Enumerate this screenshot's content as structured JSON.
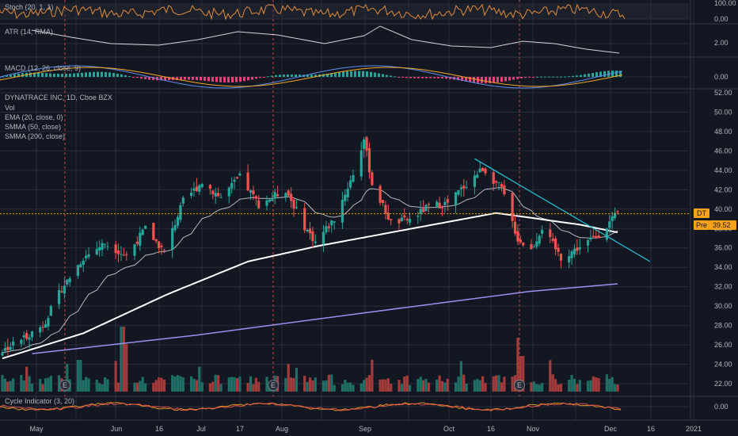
{
  "panes": {
    "stoch": {
      "label": "Stoch (20, 1, 1)",
      "ticks": [
        "100.00",
        "0.00"
      ]
    },
    "atr": {
      "label": "ATR (14, RMA)",
      "ticks": [
        "2.00"
      ]
    },
    "macd": {
      "label": "MACD (12, 26, close, 9)",
      "ticks": [
        "0.00"
      ]
    },
    "main": {
      "title": "DYNATRACE INC, 1D, Cboe BZX",
      "legend": [
        "Vol",
        "EMA (20, close, 0)",
        "SMMA (50, close)",
        "SMMA (200, close)"
      ],
      "badges": {
        "symbol": "DT",
        "pre": "Pre",
        "pre_value": "39.52"
      }
    },
    "cycle": {
      "label": "Cycle Indicator (3, 20)",
      "ticks": [
        "0.00"
      ]
    }
  },
  "earnings_marker": "E",
  "colors": {
    "background": "#131722",
    "grid": "#2a2e39",
    "up": "#26a69a",
    "down": "#ef5350",
    "vol_up": "#1f6f66",
    "vol_down": "#a33b3b",
    "ema": "#d1d4dc",
    "smma50": "#ffffff",
    "smma200": "#9b8ff2",
    "trendline": "#26c6da",
    "price_line": "#f7a21b",
    "badge": "#f7a21b",
    "stoch": "#e08a3c",
    "atr": "#d1d4dc",
    "macd_line": "#5b8def",
    "signal_line": "#f5a623"
  },
  "chart_data": {
    "type": "candlestick",
    "title": "DYNATRACE INC, 1D, Cboe BZX",
    "price_axis_ticks": [
      "52.00",
      "50.00",
      "48.00",
      "46.00",
      "44.00",
      "42.00",
      "40.00",
      "38.00",
      "36.00",
      "34.00",
      "32.00",
      "30.00",
      "28.00",
      "26.00",
      "24.00",
      "22.00"
    ],
    "ylim": [
      21,
      53
    ],
    "x_tick_labels": [
      "May",
      "Jun",
      "16",
      "Jul",
      "17",
      "Aug",
      "Sep",
      "Oct",
      "16",
      "Nov",
      "Dec",
      "16",
      "2021"
    ],
    "last_close": 39.52,
    "trendline": {
      "from": [
        "2020-10-12",
        45.2
      ],
      "to": [
        "2020-12-16",
        34.6
      ]
    },
    "ohlc_keypoints": [
      [
        "2020-04-20",
        25.4
      ],
      [
        "2020-05-05",
        28.0
      ],
      [
        "2020-05-12",
        31.8
      ],
      [
        "2020-05-20",
        35.0
      ],
      [
        "2020-05-28",
        36.5
      ],
      [
        "2020-06-05",
        35.2
      ],
      [
        "2020-06-12",
        38.0
      ],
      [
        "2020-06-19",
        35.6
      ],
      [
        "2020-06-26",
        40.8
      ],
      [
        "2020-07-03",
        42.8
      ],
      [
        "2020-07-10",
        41.2
      ],
      [
        "2020-07-17",
        43.3
      ],
      [
        "2020-07-24",
        40.5
      ],
      [
        "2020-08-03",
        42.0
      ],
      [
        "2020-08-10",
        38.2
      ],
      [
        "2020-08-14",
        36.6
      ],
      [
        "2020-08-21",
        39.0
      ],
      [
        "2020-08-28",
        43.6
      ],
      [
        "2020-09-01",
        47.2
      ],
      [
        "2020-09-04",
        42.6
      ],
      [
        "2020-09-11",
        38.6
      ],
      [
        "2020-09-18",
        38.9
      ],
      [
        "2020-09-25",
        40.3
      ],
      [
        "2020-10-02",
        40.6
      ],
      [
        "2020-10-09",
        42.6
      ],
      [
        "2020-10-15",
        44.2
      ],
      [
        "2020-10-22",
        42.1
      ],
      [
        "2020-10-28",
        36.9
      ],
      [
        "2020-11-02",
        35.8
      ],
      [
        "2020-11-06",
        38.1
      ],
      [
        "2020-11-13",
        35.0
      ],
      [
        "2020-11-20",
        36.1
      ],
      [
        "2020-11-27",
        37.4
      ],
      [
        "2020-12-04",
        39.52
      ]
    ],
    "smma50_keypoints": [
      [
        "2020-04-20",
        24.6
      ],
      [
        "2020-05-20",
        27.2
      ],
      [
        "2020-06-20",
        31.2
      ],
      [
        "2020-07-20",
        34.6
      ],
      [
        "2020-08-15",
        36.2
      ],
      [
        "2020-09-15",
        37.8
      ],
      [
        "2020-10-20",
        39.6
      ],
      [
        "2020-11-20",
        38.4
      ],
      [
        "2020-12-04",
        37.6
      ]
    ],
    "smma200_keypoints": [
      [
        "2020-05-01",
        25.1
      ],
      [
        "2020-07-01",
        27.0
      ],
      [
        "2020-09-01",
        29.3
      ],
      [
        "2020-11-01",
        31.5
      ],
      [
        "2020-12-04",
        32.3
      ]
    ]
  }
}
